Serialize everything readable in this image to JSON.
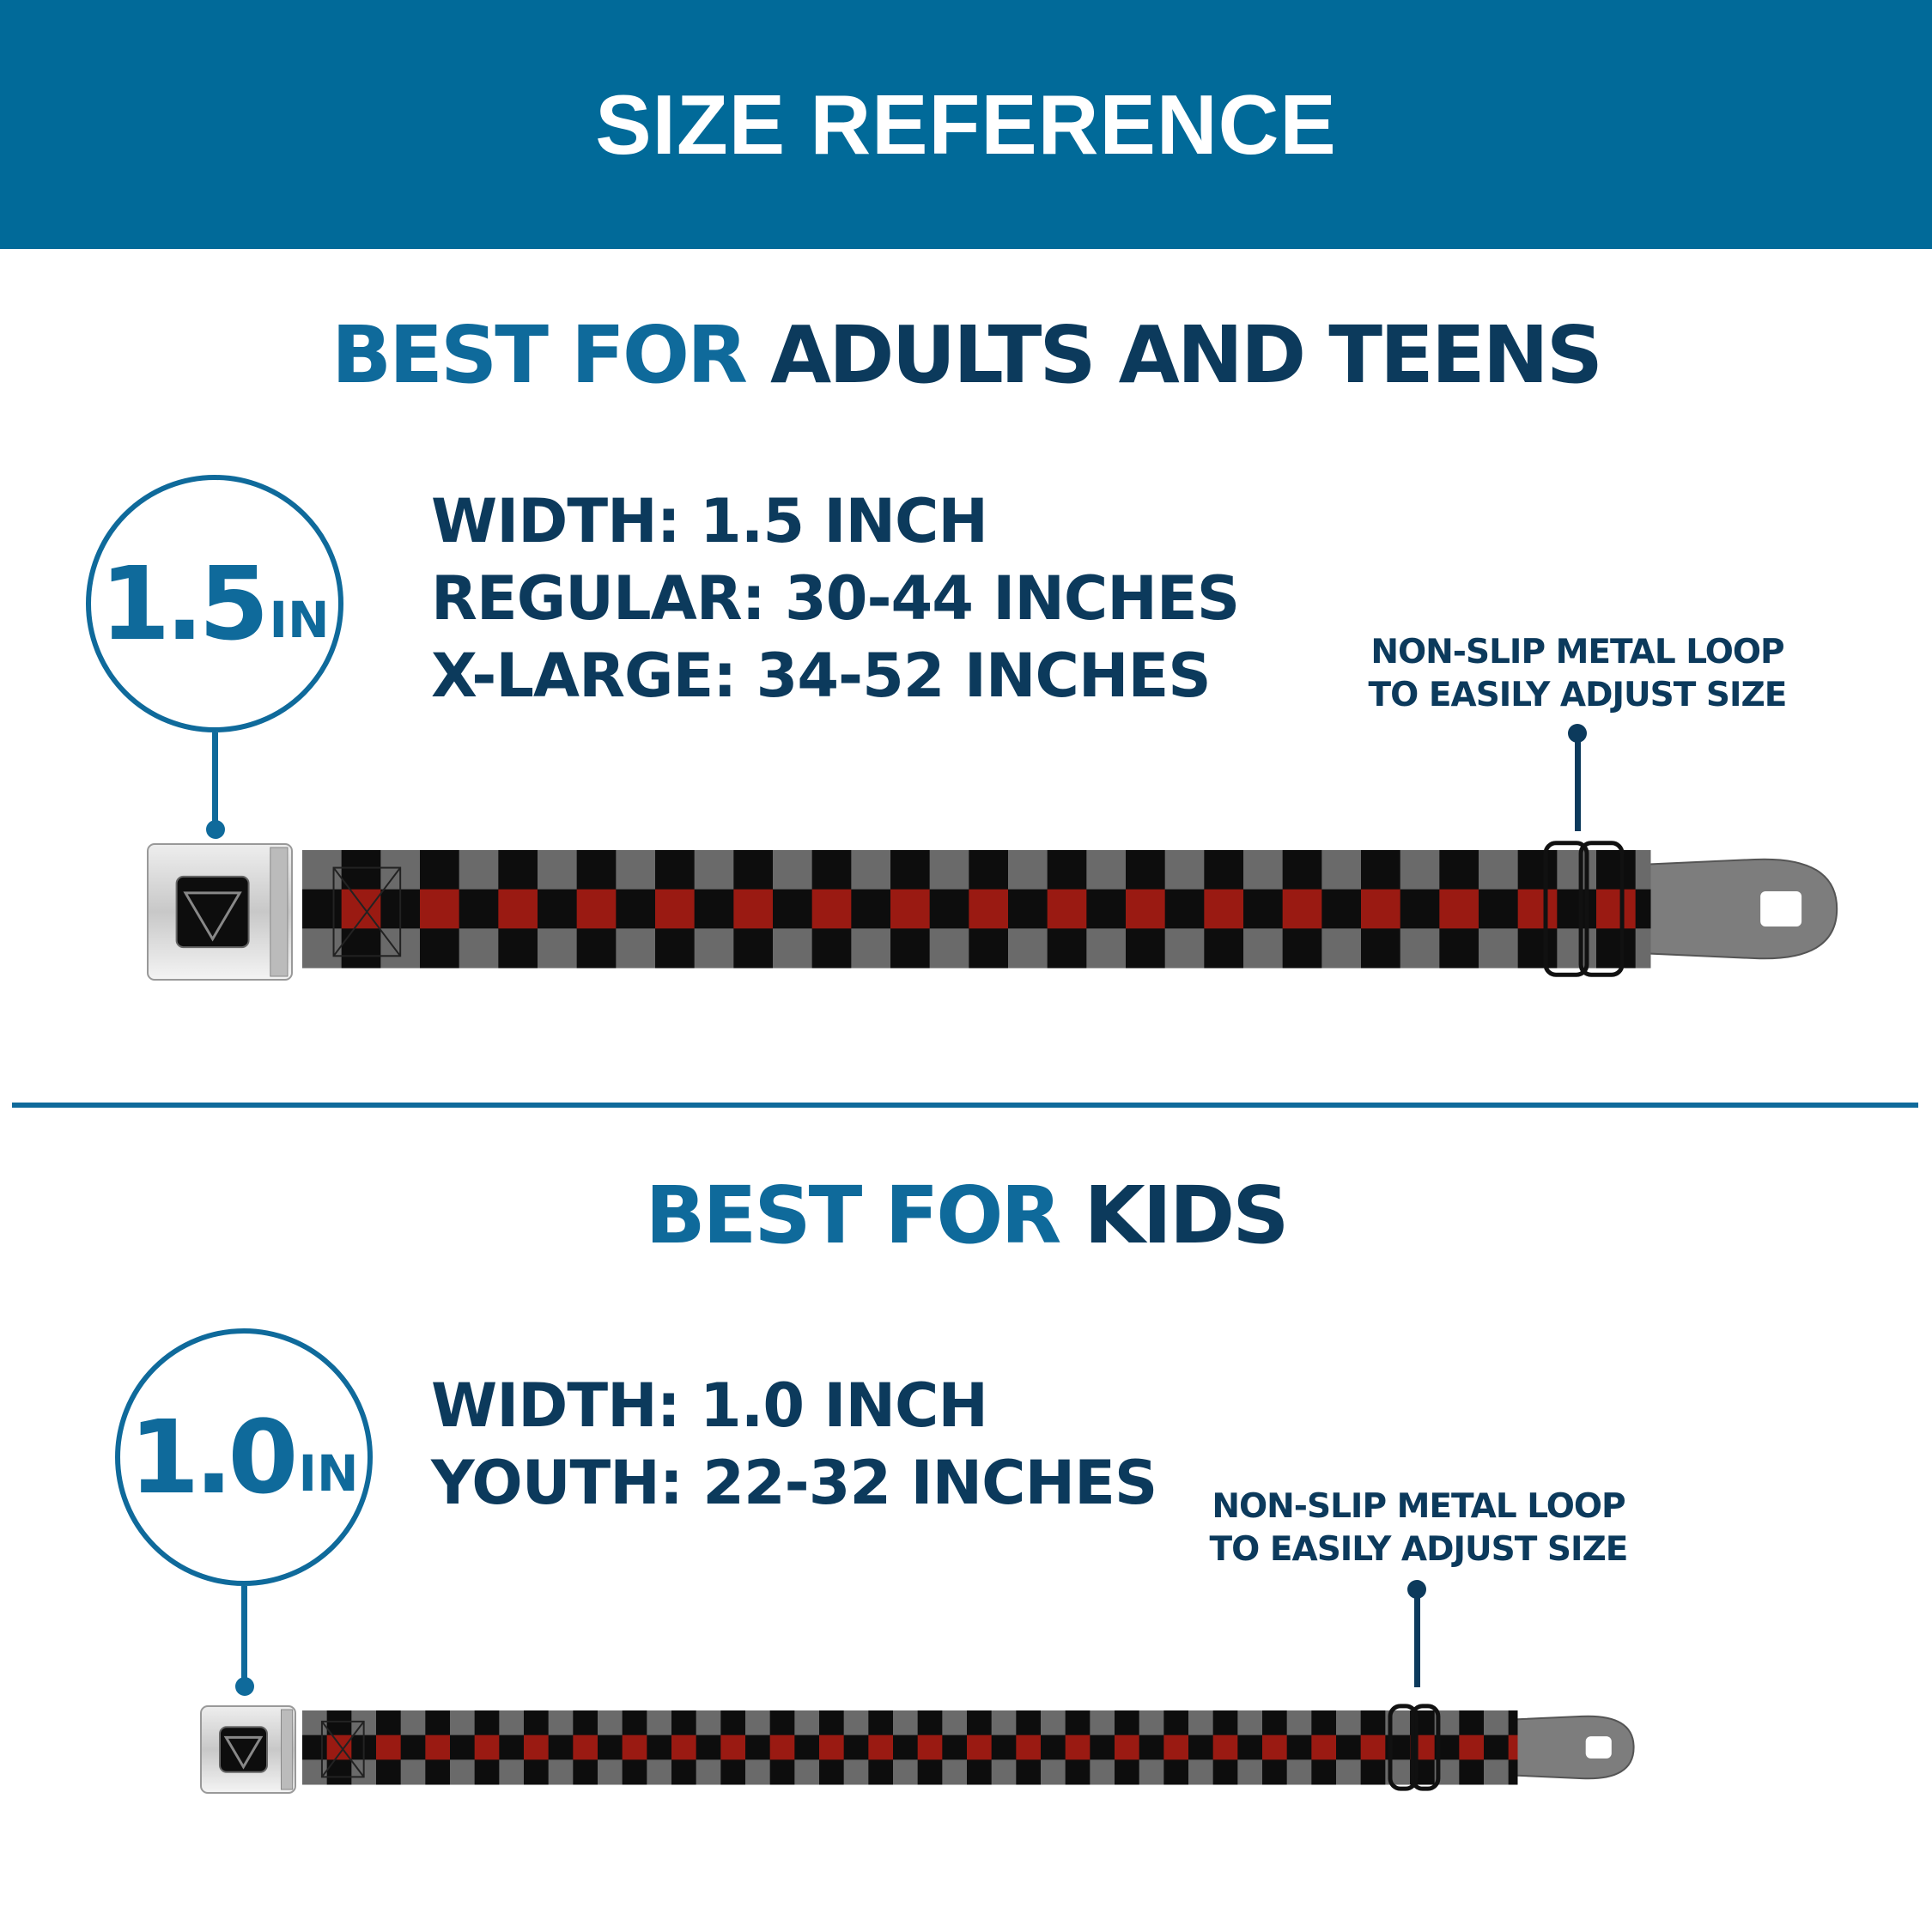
{
  "header": {
    "title": "SIZE REFERENCE"
  },
  "sections": [
    {
      "heading_accent": "BEST FOR",
      "heading_main": "ADULTS AND TEENS",
      "badge": {
        "value": "1.5",
        "unit": "IN"
      },
      "specs": [
        "WIDTH: 1.5 INCH",
        "REGULAR: 30-44 INCHES",
        "X-LARGE: 34-52 INCHES"
      ],
      "callout": [
        "NON-SLIP METAL LOOP",
        "TO EASILY ADJUST SIZE"
      ]
    },
    {
      "heading_accent": "BEST FOR",
      "heading_main": "KIDS",
      "badge": {
        "value": "1.0",
        "unit": "IN"
      },
      "specs": [
        "WIDTH: 1.0 INCH",
        "YOUTH: 22-32 INCHES"
      ],
      "callout": [
        "NON-SLIP METAL LOOP",
        "TO EASILY ADJUST SIZE"
      ]
    }
  ],
  "colors": {
    "header_bg": "#016a99",
    "accent_blue": "#0f6a9b",
    "navy": "#0c3a5c",
    "check_grey": "#6a6a6a",
    "check_black": "#0d0d0d",
    "check_red": "#9a1a12"
  }
}
